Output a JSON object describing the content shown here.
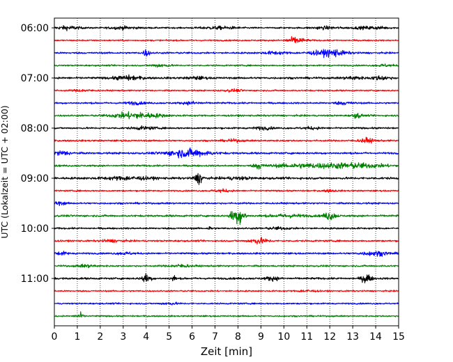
{
  "chart_data": {
    "type": "line",
    "title": "",
    "xlabel": "Zeit  [min]",
    "ylabel": "UTC (Lokalzeit = UTC + 02:00)",
    "xlim": [
      0,
      15
    ],
    "x_ticks": [
      0,
      1,
      2,
      3,
      4,
      5,
      6,
      7,
      8,
      9,
      10,
      11,
      12,
      13,
      14,
      15
    ],
    "y_tick_labels": [
      "06:00",
      "07:00",
      "08:00",
      "09:00",
      "10:00",
      "11:00"
    ],
    "grid": "vertical dotted",
    "trace_interval_minutes": 15,
    "color_cycle": [
      "#000000",
      "#ff0000",
      "#0000ff",
      "#008000"
    ],
    "series": [
      {
        "start": "06:00",
        "noise": 0.3,
        "events": [
          [
            0.6,
            0.7,
            0.5
          ],
          [
            3.0,
            0.5,
            0.6
          ],
          [
            7.2,
            0.5,
            0.8
          ],
          [
            11.8,
            0.5,
            0.6
          ],
          [
            13.8,
            0.5,
            0.8
          ]
        ]
      },
      {
        "start": "06:15",
        "noise": 0.3,
        "events": [
          [
            10.5,
            1.2,
            0.4
          ]
        ]
      },
      {
        "start": "06:30",
        "noise": 0.35,
        "events": [
          [
            4.0,
            1.3,
            0.15
          ],
          [
            9.6,
            0.5,
            0.5
          ],
          [
            11.9,
            1.0,
            0.8
          ],
          [
            12.2,
            0.6,
            0.3
          ]
        ]
      },
      {
        "start": "06:45",
        "noise": 0.3,
        "events": [
          [
            4.6,
            0.6,
            0.4
          ],
          [
            14.4,
            0.4,
            0.4
          ]
        ]
      },
      {
        "start": "07:00",
        "noise": 0.4,
        "events": [
          [
            3.2,
            0.8,
            0.6
          ],
          [
            6.2,
            0.5,
            0.4
          ],
          [
            13.0,
            0.6,
            0.4
          ],
          [
            14.2,
            0.7,
            0.4
          ]
        ]
      },
      {
        "start": "07:15",
        "noise": 0.3,
        "events": [
          [
            1.2,
            0.4,
            0.4
          ],
          [
            7.8,
            0.4,
            0.4
          ]
        ]
      },
      {
        "start": "07:30",
        "noise": 0.35,
        "events": [
          [
            3.5,
            0.5,
            0.4
          ],
          [
            6.0,
            0.5,
            0.4
          ],
          [
            12.6,
            0.5,
            0.4
          ]
        ]
      },
      {
        "start": "07:45",
        "noise": 0.35,
        "events": [
          [
            3.3,
            1.1,
            0.8
          ],
          [
            4.3,
            0.5,
            0.7
          ],
          [
            13.2,
            0.9,
            0.2
          ]
        ]
      },
      {
        "start": "08:00",
        "noise": 0.35,
        "events": [
          [
            3.9,
            0.5,
            0.5
          ],
          [
            9.1,
            0.5,
            0.4
          ],
          [
            11.2,
            0.4,
            0.4
          ]
        ]
      },
      {
        "start": "08:15",
        "noise": 0.35,
        "events": [
          [
            13.6,
            0.9,
            0.3
          ],
          [
            7.8,
            0.4,
            0.4
          ]
        ]
      },
      {
        "start": "08:30",
        "noise": 0.4,
        "events": [
          [
            5.8,
            1.5,
            0.9
          ],
          [
            0.3,
            0.8,
            0.4
          ]
        ]
      },
      {
        "start": "08:45",
        "noise": 0.35,
        "events": [
          [
            8.9,
            1.1,
            0.2
          ],
          [
            12.8,
            1.0,
            1.6
          ],
          [
            10.5,
            0.6,
            1.2
          ]
        ]
      },
      {
        "start": "09:00",
        "noise": 0.45,
        "events": [
          [
            6.3,
            2.0,
            0.2
          ],
          [
            3.2,
            0.6,
            1.0
          ],
          [
            8.0,
            0.4,
            0.6
          ]
        ]
      },
      {
        "start": "09:15",
        "noise": 0.3,
        "events": [
          [
            7.3,
            0.5,
            0.4
          ],
          [
            12.0,
            0.4,
            0.3
          ]
        ]
      },
      {
        "start": "09:30",
        "noise": 0.35,
        "events": [
          [
            0.2,
            0.6,
            0.3
          ]
        ]
      },
      {
        "start": "09:45",
        "noise": 0.4,
        "events": [
          [
            8.1,
            3.0,
            0.2
          ],
          [
            7.8,
            2.2,
            0.15
          ],
          [
            12.0,
            1.6,
            0.25
          ],
          [
            10.2,
            0.5,
            0.8
          ]
        ]
      },
      {
        "start": "10:00",
        "noise": 0.35,
        "events": [
          [
            6.8,
            0.8,
            0.1
          ],
          [
            9.8,
            0.4,
            0.5
          ]
        ]
      },
      {
        "start": "10:15",
        "noise": 0.35,
        "events": [
          [
            8.9,
            1.1,
            0.4
          ],
          [
            2.5,
            0.4,
            0.5
          ]
        ]
      },
      {
        "start": "10:30",
        "noise": 0.35,
        "events": [
          [
            14.0,
            0.8,
            0.6
          ],
          [
            0.3,
            0.6,
            0.3
          ],
          [
            3.1,
            0.4,
            0.4
          ]
        ]
      },
      {
        "start": "10:45",
        "noise": 0.35,
        "events": [
          [
            1.4,
            0.5,
            0.4
          ],
          [
            5.5,
            0.5,
            0.5
          ]
        ]
      },
      {
        "start": "11:00",
        "noise": 0.4,
        "events": [
          [
            4.0,
            1.6,
            0.2
          ],
          [
            5.2,
            1.1,
            0.1
          ],
          [
            9.5,
            0.7,
            0.3
          ],
          [
            13.6,
            2.0,
            0.2
          ]
        ]
      },
      {
        "start": "11:15",
        "noise": 0.3,
        "events": [
          [
            11.0,
            0.4,
            0.4
          ]
        ]
      },
      {
        "start": "11:30",
        "noise": 0.3,
        "events": [
          [
            5.0,
            0.4,
            0.4
          ]
        ]
      },
      {
        "start": "11:45",
        "noise": 0.3,
        "events": [
          [
            1.1,
            1.2,
            0.15
          ]
        ]
      }
    ]
  }
}
